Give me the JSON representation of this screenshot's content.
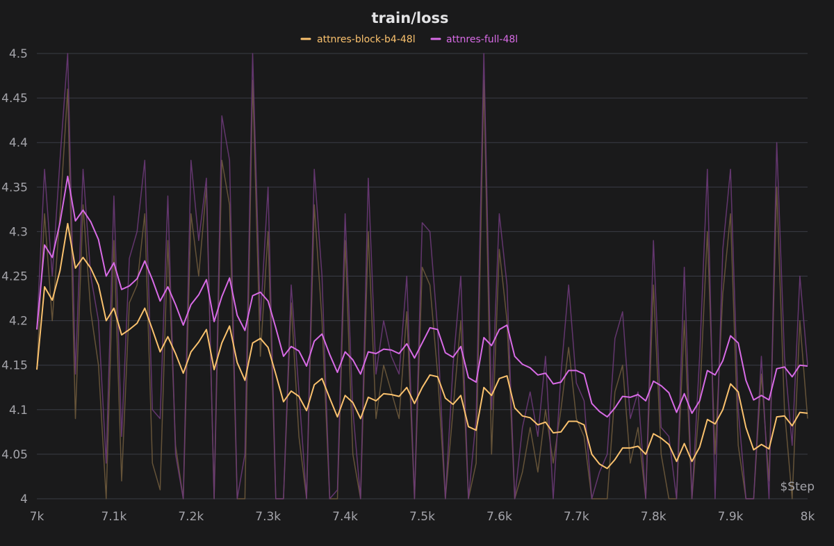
{
  "chart_data": {
    "type": "line",
    "title": "train/loss",
    "xlabel": "Step",
    "ylabel": "",
    "xlim": [
      7000,
      8000
    ],
    "ylim": [
      4.0,
      4.5
    ],
    "x_ticks": [
      7000,
      7100,
      7200,
      7300,
      7400,
      7500,
      7600,
      7700,
      7800,
      7900,
      8000
    ],
    "x_tick_labels": [
      "7k",
      "7.1k",
      "7.2k",
      "7.3k",
      "7.4k",
      "7.5k",
      "7.6k",
      "7.7k",
      "7.8k",
      "7.9k",
      "8k"
    ],
    "y_ticks": [
      4.0,
      4.05,
      4.1,
      4.15,
      4.2,
      4.25,
      4.3,
      4.35,
      4.4,
      4.45,
      4.5
    ],
    "y_tick_labels": [
      "4",
      "4.05",
      "4.1",
      "4.15",
      "4.2",
      "4.25",
      "4.3",
      "4.35",
      "4.4",
      "4.45",
      "4.5"
    ],
    "grid": true,
    "legend_position": "top-center",
    "x": [
      7000,
      7010,
      7020,
      7030,
      7040,
      7050,
      7060,
      7070,
      7080,
      7090,
      7100,
      7110,
      7120,
      7130,
      7140,
      7150,
      7160,
      7170,
      7180,
      7190,
      7200,
      7210,
      7220,
      7230,
      7240,
      7250,
      7260,
      7270,
      7280,
      7290,
      7300,
      7310,
      7320,
      7330,
      7340,
      7350,
      7360,
      7370,
      7380,
      7390,
      7400,
      7410,
      7420,
      7430,
      7440,
      7450,
      7460,
      7470,
      7480,
      7490,
      7500,
      7510,
      7520,
      7530,
      7540,
      7550,
      7560,
      7570,
      7580,
      7590,
      7600,
      7610,
      7620,
      7630,
      7640,
      7650,
      7660,
      7670,
      7680,
      7690,
      7700,
      7710,
      7720,
      7730,
      7740,
      7750,
      7760,
      7770,
      7780,
      7790,
      7800,
      7810,
      7820,
      7830,
      7840,
      7850,
      7860,
      7870,
      7880,
      7890,
      7900,
      7910,
      7920,
      7930,
      7940,
      7950,
      7960,
      7970,
      7980,
      7990,
      8000
    ],
    "series": [
      {
        "name": "attnres-block-b4-48l",
        "color": "#fbc26e",
        "raw_color": "#6e5a3c",
        "values": [
          4.145,
          4.238,
          4.223,
          4.256,
          4.309,
          4.259,
          4.271,
          4.259,
          4.24,
          4.2,
          4.214,
          4.184,
          4.19,
          4.197,
          4.214,
          4.19,
          4.165,
          4.182,
          4.163,
          4.141,
          4.165,
          4.176,
          4.19,
          4.145,
          4.175,
          4.194,
          4.153,
          4.133,
          4.175,
          4.18,
          4.17,
          4.14,
          4.109,
          4.121,
          4.115,
          4.099,
          4.128,
          4.135,
          4.113,
          4.092,
          4.116,
          4.108,
          4.09,
          4.114,
          4.11,
          4.118,
          4.117,
          4.115,
          4.125,
          4.107,
          4.125,
          4.139,
          4.137,
          4.113,
          4.106,
          4.116,
          4.081,
          4.077,
          4.125,
          4.116,
          4.135,
          4.138,
          4.102,
          4.093,
          4.091,
          4.083,
          4.086,
          4.074,
          4.075,
          4.087,
          4.087,
          4.083,
          4.05,
          4.039,
          4.034,
          4.044,
          4.057,
          4.057,
          4.059,
          4.05,
          4.073,
          4.068,
          4.061,
          4.042,
          4.062,
          4.042,
          4.058,
          4.089,
          4.084,
          4.1,
          4.129,
          4.12,
          4.08,
          4.055,
          4.061,
          4.056,
          4.092,
          4.093,
          4.082,
          4.097,
          4.096
        ],
        "raw_values": [
          4.145,
          4.32,
          4.2,
          4.32,
          4.46,
          4.09,
          4.33,
          4.21,
          4.15,
          4.0,
          4.29,
          4.02,
          4.22,
          4.24,
          4.32,
          4.04,
          4.01,
          4.29,
          4.06,
          4.0,
          4.32,
          4.25,
          4.35,
          4.0,
          4.38,
          4.33,
          4.0,
          4.0,
          4.47,
          4.16,
          4.3,
          4.0,
          4.0,
          4.22,
          4.07,
          4.0,
          4.33,
          4.2,
          4.0,
          4.0,
          4.29,
          4.05,
          4.0,
          4.3,
          4.09,
          4.15,
          4.12,
          4.09,
          4.21,
          4.0,
          4.26,
          4.24,
          4.14,
          4.0,
          4.1,
          4.2,
          4.0,
          4.04,
          4.47,
          4.05,
          4.28,
          4.2,
          4.0,
          4.03,
          4.08,
          4.03,
          4.1,
          4.04,
          4.1,
          4.17,
          4.09,
          4.07,
          4.0,
          4.0,
          4.0,
          4.12,
          4.15,
          4.04,
          4.08,
          4.0,
          4.24,
          4.05,
          4.0,
          4.0,
          4.2,
          4.0,
          4.11,
          4.3,
          4.05,
          4.23,
          4.32,
          4.06,
          4.0,
          4.0,
          4.14,
          4.02,
          4.35,
          4.1,
          4.0,
          4.2,
          4.09
        ]
      },
      {
        "name": "attnres-full-48l",
        "color": "#d86be6",
        "raw_color": "#6c3a78",
        "values": [
          4.19,
          4.285,
          4.271,
          4.31,
          4.362,
          4.312,
          4.324,
          4.311,
          4.291,
          4.25,
          4.265,
          4.235,
          4.239,
          4.247,
          4.267,
          4.246,
          4.222,
          4.238,
          4.218,
          4.195,
          4.218,
          4.229,
          4.246,
          4.199,
          4.227,
          4.248,
          4.206,
          4.189,
          4.228,
          4.232,
          4.222,
          4.192,
          4.16,
          4.171,
          4.166,
          4.149,
          4.177,
          4.185,
          4.162,
          4.142,
          4.165,
          4.156,
          4.14,
          4.165,
          4.163,
          4.168,
          4.167,
          4.163,
          4.174,
          4.158,
          4.175,
          4.192,
          4.19,
          4.164,
          4.159,
          4.171,
          4.136,
          4.131,
          4.181,
          4.172,
          4.19,
          4.195,
          4.16,
          4.151,
          4.147,
          4.139,
          4.141,
          4.129,
          4.131,
          4.144,
          4.144,
          4.14,
          4.107,
          4.098,
          4.092,
          4.102,
          4.115,
          4.114,
          4.117,
          4.11,
          4.132,
          4.127,
          4.119,
          4.097,
          4.118,
          4.096,
          4.11,
          4.144,
          4.139,
          4.155,
          4.183,
          4.175,
          4.133,
          4.111,
          4.116,
          4.111,
          4.146,
          4.148,
          4.137,
          4.15,
          4.149
        ],
        "raw_values": [
          4.19,
          4.37,
          4.25,
          4.38,
          4.5,
          4.14,
          4.37,
          4.25,
          4.2,
          4.04,
          4.34,
          4.07,
          4.27,
          4.3,
          4.38,
          4.1,
          4.09,
          4.34,
          4.05,
          4.0,
          4.38,
          4.29,
          4.36,
          4.0,
          4.43,
          4.38,
          4.0,
          4.05,
          4.5,
          4.2,
          4.35,
          4.0,
          4.0,
          4.24,
          4.12,
          4.0,
          4.37,
          4.25,
          4.0,
          4.01,
          4.32,
          4.1,
          4.0,
          4.36,
          4.14,
          4.2,
          4.16,
          4.14,
          4.25,
          4.0,
          4.31,
          4.3,
          4.19,
          4.0,
          4.15,
          4.25,
          4.0,
          4.09,
          4.5,
          4.1,
          4.32,
          4.24,
          4.0,
          4.08,
          4.12,
          4.07,
          4.16,
          4.0,
          4.14,
          4.24,
          4.13,
          4.11,
          4.0,
          4.03,
          4.05,
          4.18,
          4.21,
          4.09,
          4.12,
          4.0,
          4.29,
          4.08,
          4.07,
          4.0,
          4.26,
          4.0,
          4.16,
          4.37,
          4.0,
          4.28,
          4.37,
          4.1,
          4.0,
          4.0,
          4.16,
          4.0,
          4.4,
          4.16,
          4.06,
          4.25,
          4.15
        ]
      }
    ]
  }
}
